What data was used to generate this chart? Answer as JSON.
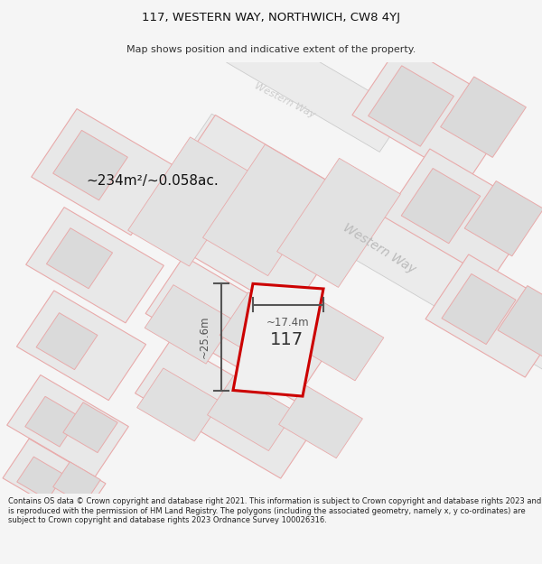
{
  "title_line1": "117, WESTERN WAY, NORTHWICH, CW8 4YJ",
  "title_line2": "Map shows position and indicative extent of the property.",
  "area_label": "~234m²/~0.058ac.",
  "number_label": "117",
  "dim_width": "~17.4m",
  "dim_height": "~25.6m",
  "street_label_main": "Western Way",
  "street_label_upper": "Western Way",
  "footer_text": "Contains OS data © Crown copyright and database right 2021. This information is subject to Crown copyright and database rights 2023 and is reproduced with the permission of HM Land Registry. The polygons (including the associated geometry, namely x, y co-ordinates) are subject to Crown copyright and database rights 2023 Ordnance Survey 100026316.",
  "bg_color": "#f5f5f5",
  "map_bg": "#ffffff",
  "parcel_fill": "#e8e8e8",
  "parcel_stroke": "#e8aaaa",
  "road_fill": "#f0f0f0",
  "road_stroke": "#cccccc",
  "main_fill": "#f0f0f0",
  "main_stroke": "#cc0000",
  "dim_color": "#555555",
  "text_color": "#333333",
  "street_color": "#bbbbbb",
  "area_color": "#111111"
}
